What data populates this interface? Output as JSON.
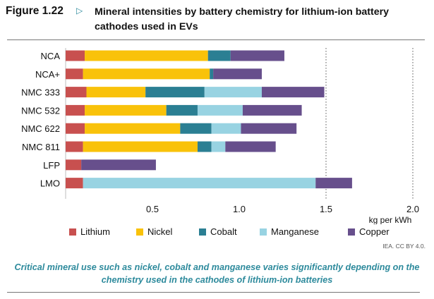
{
  "figure": {
    "number": "Figure 1.22",
    "arrow_icon": "play-outline-icon",
    "title": "Mineral intensities by battery chemistry for lithium-ion battery cathodes used in EVs"
  },
  "chart_data": {
    "type": "bar",
    "orientation": "horizontal",
    "stacked": true,
    "categories": [
      "NCA",
      "NCA+",
      "NMC 333",
      "NMC 532",
      "NMC 622",
      "NMC 811",
      "LFP",
      "LMO"
    ],
    "series": [
      {
        "name": "Lithium",
        "color": "#c8504f",
        "values": [
          0.11,
          0.1,
          0.12,
          0.11,
          0.11,
          0.1,
          0.09,
          0.1
        ]
      },
      {
        "name": "Nickel",
        "color": "#f9c20a",
        "values": [
          0.71,
          0.73,
          0.34,
          0.47,
          0.55,
          0.66,
          0,
          0
        ]
      },
      {
        "name": "Cobalt",
        "color": "#2b7f93",
        "values": [
          0.13,
          0.02,
          0.34,
          0.18,
          0.18,
          0.08,
          0,
          0
        ]
      },
      {
        "name": "Manganese",
        "color": "#98d3e2",
        "values": [
          0,
          0,
          0.33,
          0.26,
          0.17,
          0.08,
          0,
          1.34
        ]
      },
      {
        "name": "Copper",
        "color": "#674f8c",
        "values": [
          0.31,
          0.28,
          0.36,
          0.34,
          0.32,
          0.29,
          0.43,
          0.21
        ]
      }
    ],
    "x_ticks": [
      "0.5",
      "1.0",
      "1.5",
      "2.0"
    ],
    "x_tick_values": [
      0.5,
      1.0,
      1.5,
      2.0
    ],
    "xlim": [
      0,
      2.0
    ],
    "xlabel": "kg per kWh",
    "grid": "dotted vertical at 1.5 and 2.0",
    "legend_position": "bottom"
  },
  "credit": "IEA. CC BY 4.0.",
  "caption": "Critical mineral use such as nickel, cobalt and manganese varies significantly depending on the chemistry used in the cathodes of lithium-ion batteries"
}
